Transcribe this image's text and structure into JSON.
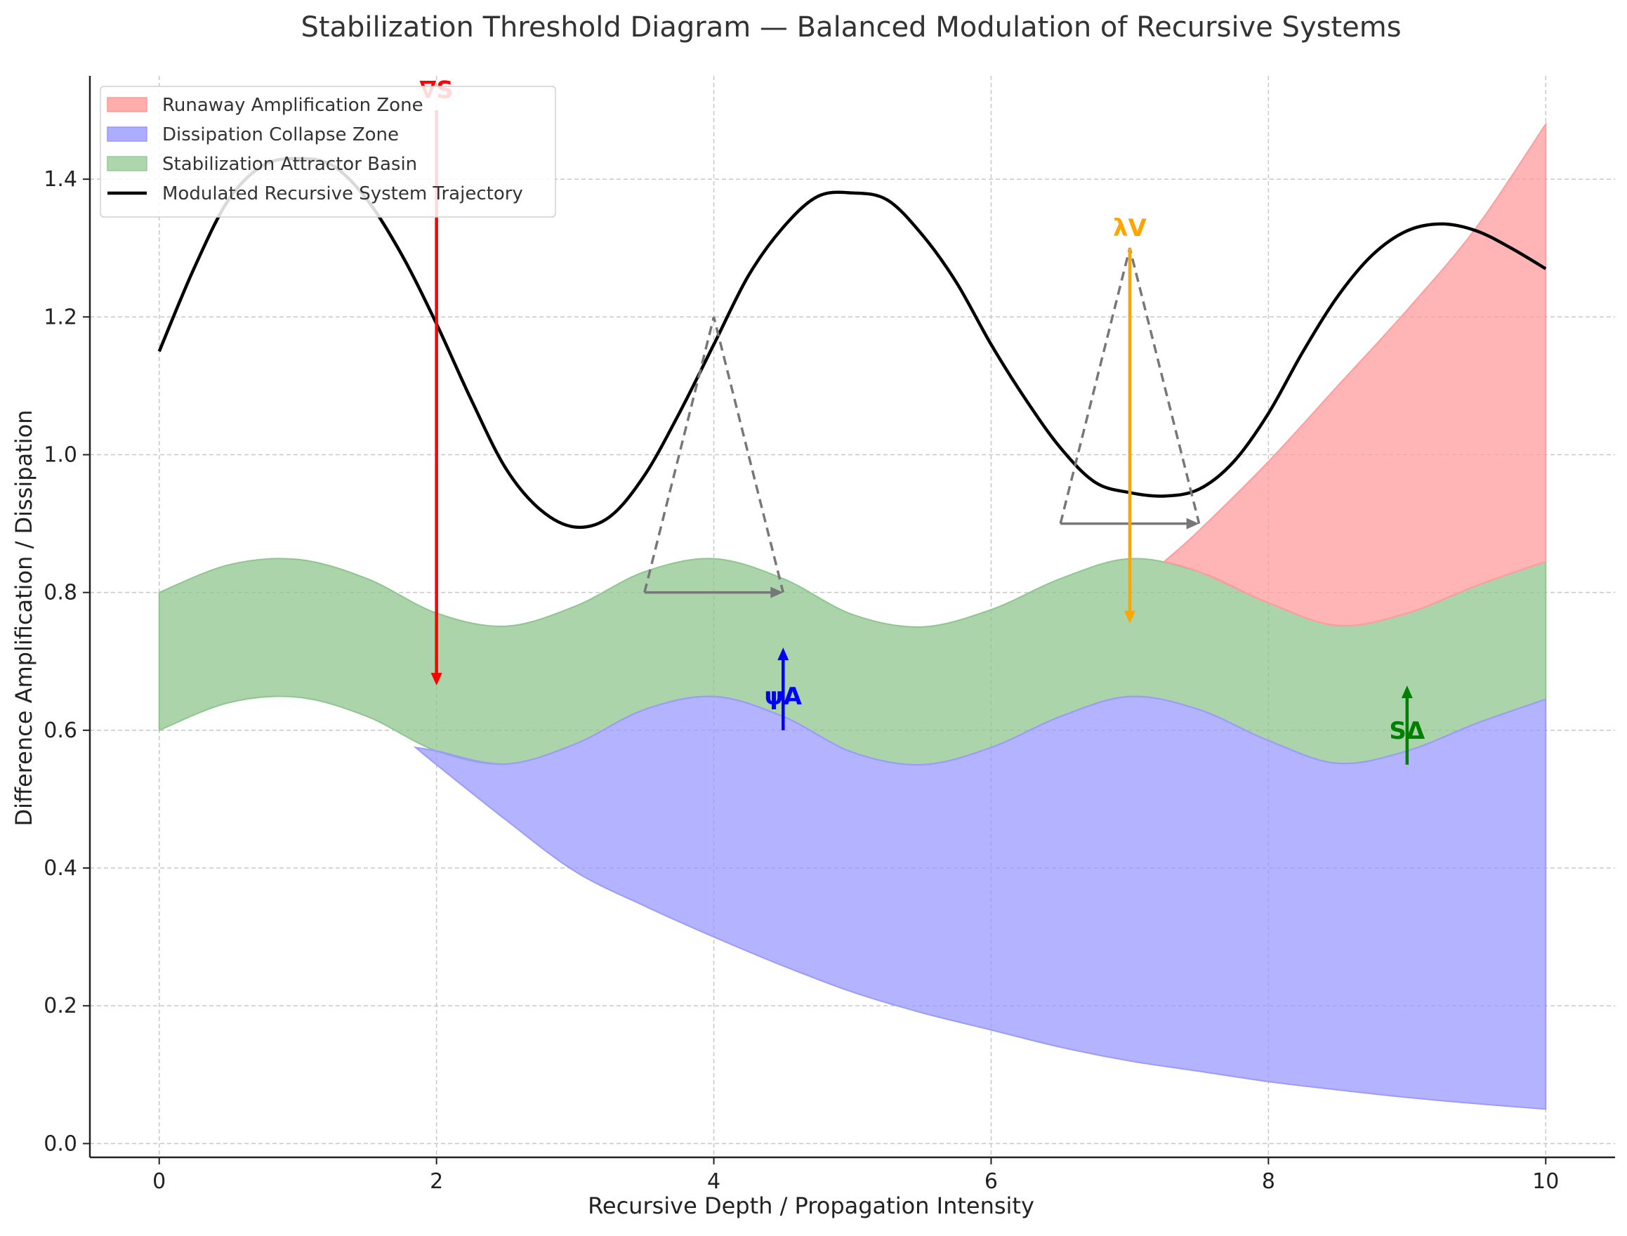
{
  "chart_data": {
    "type": "area",
    "title": "Stabilization Threshold Diagram — Balanced Modulation of Recursive Systems",
    "xlabel": "Recursive Depth / Propagation Intensity",
    "ylabel": "Difference Amplification / Dissipation",
    "xlim": [
      -0.5,
      10.5
    ],
    "ylim": [
      -0.02,
      1.55
    ],
    "xticks": [
      0,
      2,
      4,
      6,
      8,
      10
    ],
    "xtick_labels": [
      "0",
      "2",
      "4",
      "6",
      "8",
      "10"
    ],
    "yticks": [
      0.0,
      0.2,
      0.4,
      0.6,
      0.8,
      1.0,
      1.2,
      1.4
    ],
    "ytick_labels": [
      "0.0",
      "0.2",
      "0.4",
      "0.6",
      "0.8",
      "1.0",
      "1.2",
      "1.4"
    ],
    "grid": true,
    "legend_position": "top-left",
    "legend": [
      {
        "label": "Runaway Amplification Zone",
        "color": "#ff9999",
        "kind": "patch"
      },
      {
        "label": "Dissipation Collapse Zone",
        "color": "#9999ff",
        "kind": "patch"
      },
      {
        "label": "Stabilization Attractor Basin",
        "color": "#99cc99",
        "kind": "patch"
      },
      {
        "label": "Modulated Recursive System Trajectory",
        "color": "#000000",
        "kind": "line"
      }
    ],
    "series": [
      {
        "name": "Stabilization Attractor Basin",
        "kind": "band",
        "color": "#8fc58f",
        "x": [
          0,
          0.5,
          1,
          1.5,
          2,
          2.5,
          3,
          3.5,
          4,
          4.5,
          5,
          5.5,
          6,
          6.5,
          7,
          7.5,
          8,
          8.5,
          9,
          9.5,
          10
        ],
        "upper": [
          0.8,
          0.84,
          0.848,
          0.82,
          0.77,
          0.751,
          0.78,
          0.83,
          0.849,
          0.82,
          0.768,
          0.75,
          0.775,
          0.82,
          0.849,
          0.83,
          0.785,
          0.752,
          0.77,
          0.81,
          0.845
        ],
        "lower": [
          0.6,
          0.64,
          0.648,
          0.62,
          0.57,
          0.551,
          0.58,
          0.63,
          0.649,
          0.62,
          0.568,
          0.55,
          0.575,
          0.62,
          0.649,
          0.63,
          0.585,
          0.552,
          0.57,
          0.61,
          0.645
        ]
      },
      {
        "name": "Dissipation Collapse Zone",
        "kind": "band",
        "color": "#9a9aff",
        "x": [
          1.85,
          2,
          2.5,
          3,
          3.5,
          4,
          4.5,
          5,
          5.5,
          6,
          6.5,
          7,
          7.5,
          8,
          8.5,
          9,
          9.5,
          10
        ],
        "upper": [
          0.575,
          0.57,
          0.551,
          0.58,
          0.63,
          0.649,
          0.62,
          0.568,
          0.55,
          0.575,
          0.62,
          0.649,
          0.63,
          0.585,
          0.552,
          0.57,
          0.61,
          0.645
        ],
        "lower": [
          0.575,
          0.55,
          0.47,
          0.395,
          0.345,
          0.3,
          0.258,
          0.22,
          0.19,
          0.165,
          0.14,
          0.12,
          0.105,
          0.09,
          0.078,
          0.067,
          0.058,
          0.05
        ]
      },
      {
        "name": "Runaway Amplification Zone",
        "kind": "band",
        "color": "#ff9c9c",
        "x": [
          7.25,
          7.5,
          8,
          8.5,
          9,
          9.5,
          10
        ],
        "upper": [
          0.845,
          0.89,
          0.99,
          1.1,
          1.21,
          1.33,
          1.48
        ],
        "lower": [
          0.845,
          0.83,
          0.785,
          0.752,
          0.77,
          0.81,
          0.845
        ]
      },
      {
        "name": "Modulated Recursive System Trajectory",
        "kind": "line",
        "color": "#000000",
        "x": [
          0,
          0.25,
          0.5,
          0.75,
          1,
          1.25,
          1.5,
          1.75,
          2,
          2.25,
          2.5,
          2.75,
          3,
          3.25,
          3.5,
          3.75,
          4,
          4.25,
          4.5,
          4.75,
          5,
          5.25,
          5.5,
          5.75,
          6,
          6.25,
          6.5,
          6.75,
          7,
          7.25,
          7.5,
          7.75,
          8,
          8.25,
          8.5,
          8.75,
          9,
          9.25,
          9.5,
          9.75,
          10
        ],
        "y": [
          1.15,
          1.27,
          1.37,
          1.42,
          1.43,
          1.42,
          1.37,
          1.29,
          1.19,
          1.08,
          0.98,
          0.92,
          0.895,
          0.91,
          0.97,
          1.06,
          1.16,
          1.26,
          1.33,
          1.375,
          1.38,
          1.37,
          1.32,
          1.25,
          1.16,
          1.08,
          1.01,
          0.96,
          0.945,
          0.94,
          0.95,
          0.99,
          1.06,
          1.15,
          1.23,
          1.29,
          1.325,
          1.335,
          1.325,
          1.3,
          1.27
        ]
      }
    ],
    "triangles": [
      {
        "apex": [
          4,
          1.2
        ],
        "base_left": [
          3.5,
          0.8
        ],
        "base_right": [
          4.5,
          0.8
        ],
        "color": "#777777"
      },
      {
        "apex": [
          7,
          1.3
        ],
        "base_left": [
          6.5,
          0.9
        ],
        "base_right": [
          7.5,
          0.9
        ],
        "color": "#777777"
      }
    ],
    "annotations": [
      {
        "label": "∇S",
        "color": "#ff0000",
        "text_at": [
          2,
          1.53
        ],
        "arrow_from": [
          2,
          1.5
        ],
        "arrow_to": [
          2,
          0.665
        ]
      },
      {
        "label": "λV",
        "color": "#ffa500",
        "text_at": [
          7,
          1.33
        ],
        "arrow_from": [
          7,
          1.3
        ],
        "arrow_to": [
          7,
          0.755
        ]
      },
      {
        "label": "ψA",
        "color": "#0000ff",
        "text_at": [
          4.5,
          0.65
        ],
        "arrow_from": [
          4.5,
          0.6
        ],
        "arrow_to": [
          4.5,
          0.72
        ]
      },
      {
        "label": "SΔ",
        "color": "#008000",
        "text_at": [
          9,
          0.6
        ],
        "arrow_from": [
          9,
          0.55
        ],
        "arrow_to": [
          9,
          0.665
        ]
      }
    ]
  }
}
